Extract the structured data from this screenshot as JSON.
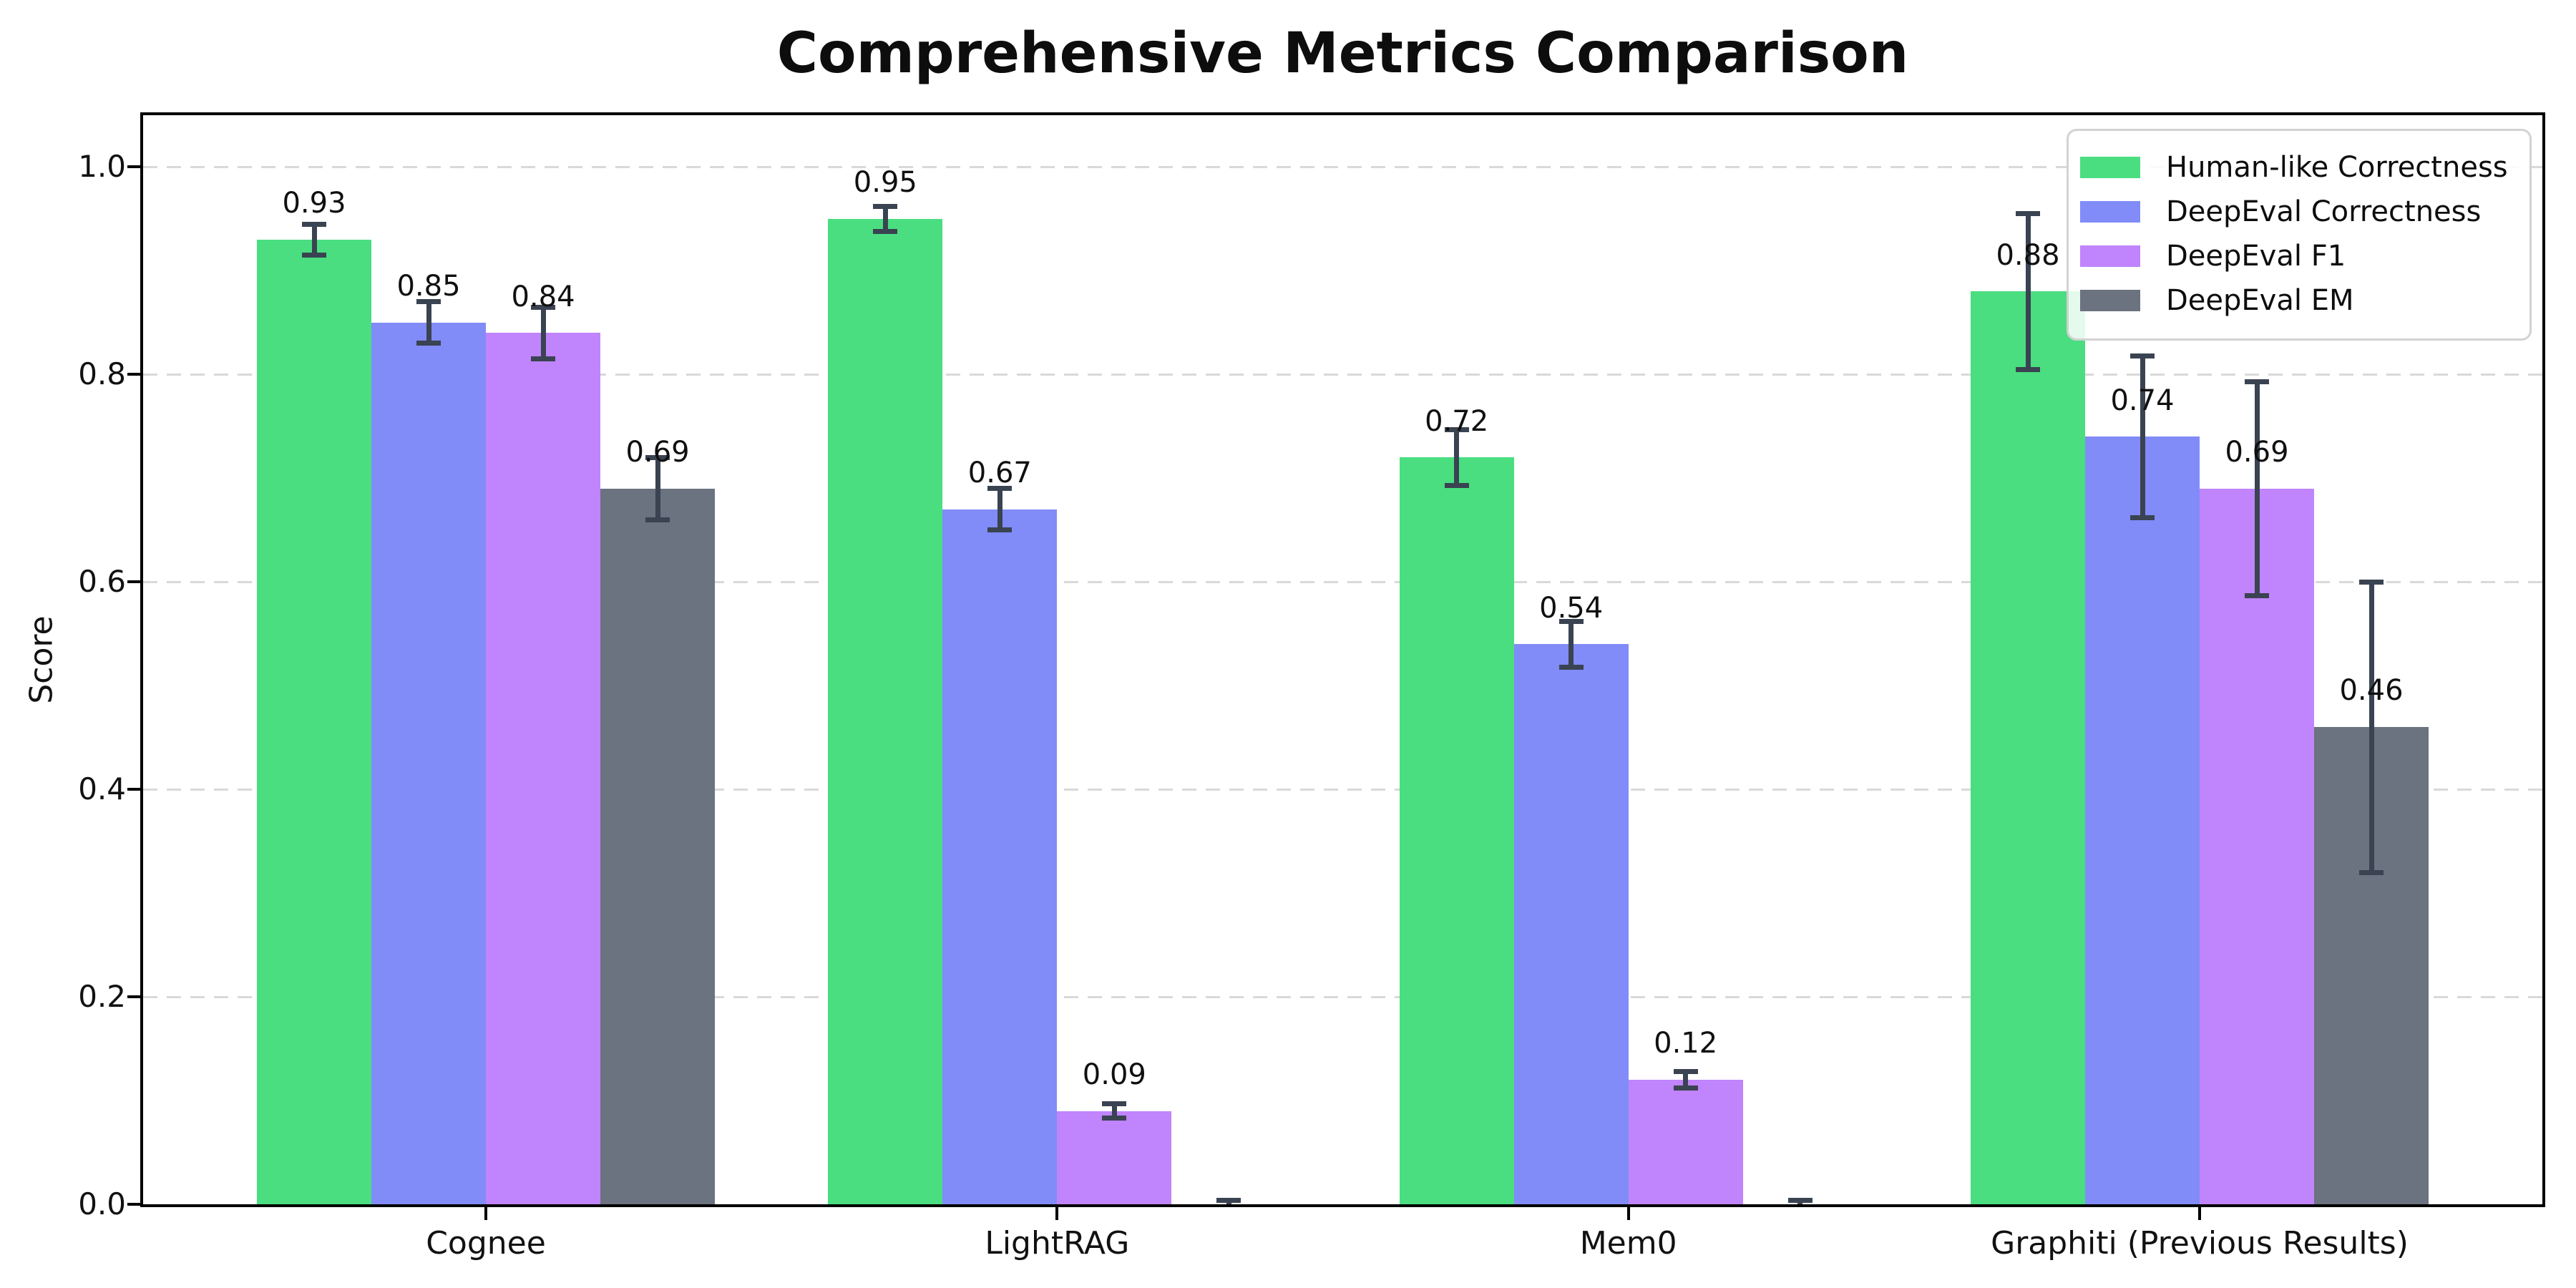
{
  "chart_data": {
    "type": "bar",
    "title": "Comprehensive Metrics Comparison",
    "ylabel": "Score",
    "xlabel": "",
    "categories": [
      "Cognee",
      "LightRAG",
      "Mem0",
      "Graphiti (Previous Results)"
    ],
    "series": [
      {
        "name": "Human-like Correctness",
        "color": "#4ade80",
        "values": [
          0.93,
          0.95,
          0.72,
          0.88
        ],
        "errors": [
          0.015,
          0.012,
          0.027,
          0.075
        ],
        "value_labels": [
          "0.93",
          "0.95",
          "0.72",
          "0.88"
        ]
      },
      {
        "name": "DeepEval Correctness",
        "color": "#818cf8",
        "values": [
          0.85,
          0.67,
          0.54,
          0.74
        ],
        "errors": [
          0.02,
          0.02,
          0.022,
          0.078
        ],
        "value_labels": [
          "0.85",
          "0.67",
          "0.54",
          "0.74"
        ]
      },
      {
        "name": "DeepEval F1",
        "color": "#c084fc",
        "values": [
          0.84,
          0.09,
          0.12,
          0.69
        ],
        "errors": [
          0.025,
          0.007,
          0.008,
          0.103
        ],
        "value_labels": [
          "0.84",
          "0.09",
          "0.12",
          "0.69"
        ]
      },
      {
        "name": "DeepEval EM",
        "color": "#6b7280",
        "values": [
          0.69,
          0.0,
          0.0,
          0.46
        ],
        "errors": [
          0.03,
          0.004,
          0.004,
          0.14
        ],
        "value_labels": [
          "0.69",
          "",
          "",
          "0.46"
        ]
      }
    ],
    "ylim": [
      0.0,
      1.05
    ],
    "yticks": [
      {
        "value": 0.0,
        "label": "0.0"
      },
      {
        "value": 0.2,
        "label": "0.2"
      },
      {
        "value": 0.4,
        "label": "0.4"
      },
      {
        "value": 0.6,
        "label": "0.6"
      },
      {
        "value": 0.8,
        "label": "0.8"
      },
      {
        "value": 1.0,
        "label": "1.0"
      }
    ],
    "grid": "horizontal-dashed",
    "legend_position": "upper-right",
    "colors": {
      "error_bar": "#3a4351",
      "gridline": "#d9d9d9",
      "axis": "#000000",
      "legend_border": "#d2d2d2"
    }
  }
}
